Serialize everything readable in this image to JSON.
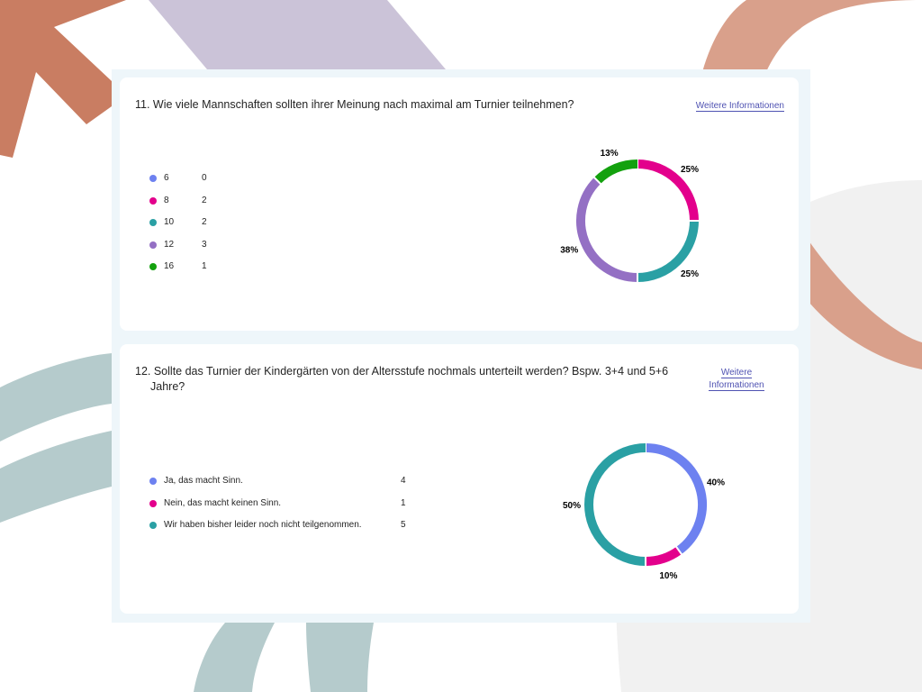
{
  "theme": {
    "colors": [
      "#6d81f0",
      "#e3008c",
      "#2aa0a4",
      "#9470c4",
      "#13a10e"
    ],
    "link_color": "#4f52b2"
  },
  "questions": [
    {
      "title": "11. Wie viele Mannschaften sollten ihrer Meinung nach maximal am Turnier teilnehmen?",
      "more_link": "Weitere Informationen",
      "options": [
        {
          "label": "6",
          "count": "0"
        },
        {
          "label": "8",
          "count": "2"
        },
        {
          "label": "10",
          "count": "2"
        },
        {
          "label": "12",
          "count": "3"
        },
        {
          "label": "16",
          "count": "1"
        }
      ]
    },
    {
      "title": "12. Sollte das Turnier der Kindergärten von der Altersstufe nochmals unterteilt werden? Bspw. 3+4 und 5+6 Jahre?",
      "more_link": "Weitere Informationen",
      "options": [
        {
          "label": "Ja, das macht Sinn.",
          "count": "4"
        },
        {
          "label": "Nein, das macht keinen Sinn.",
          "count": "1"
        },
        {
          "label": "Wir haben bisher leider noch nicht teilgenommen.",
          "count": "5"
        }
      ]
    }
  ],
  "chart_data": [
    {
      "type": "pie",
      "categories": [
        "6",
        "8",
        "10",
        "12",
        "16"
      ],
      "values": [
        0,
        2,
        2,
        3,
        1
      ],
      "percent_labels": [
        "",
        "25%",
        "25%",
        "38%",
        "13%"
      ],
      "colors": [
        "#6d81f0",
        "#e3008c",
        "#2aa0a4",
        "#9470c4",
        "#13a10e"
      ]
    },
    {
      "type": "pie",
      "categories": [
        "Ja, das macht Sinn.",
        "Nein, das macht keinen Sinn.",
        "Wir haben bisher leider noch nicht teilgenommen."
      ],
      "values": [
        4,
        1,
        5
      ],
      "percent_labels": [
        "40%",
        "10%",
        "50%"
      ],
      "colors": [
        "#6d81f0",
        "#e3008c",
        "#2aa0a4"
      ]
    }
  ]
}
